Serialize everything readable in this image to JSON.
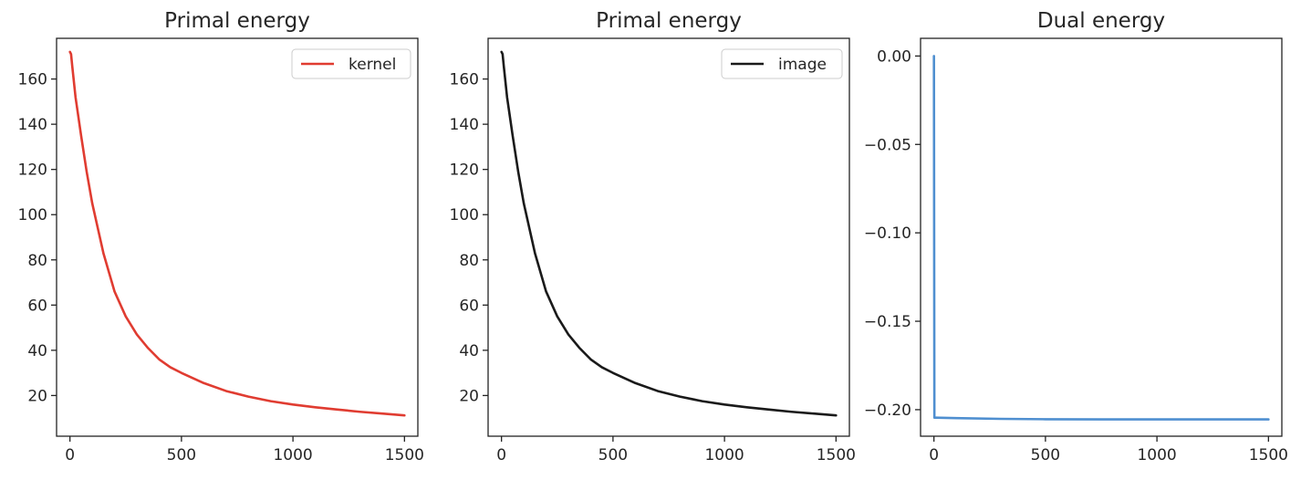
{
  "chart_data": [
    {
      "type": "line",
      "title": "Primal energy",
      "xlabel": "",
      "ylabel": "",
      "xlim": [
        -60,
        1560
      ],
      "ylim": [
        2,
        178
      ],
      "xticks": [
        0,
        500,
        1000,
        1500
      ],
      "xtick_labels": [
        "0",
        "500",
        "1000",
        "1500"
      ],
      "yticks": [
        20,
        40,
        60,
        80,
        100,
        120,
        140,
        160
      ],
      "ytick_labels": [
        "20",
        "40",
        "60",
        "80",
        "100",
        "120",
        "140",
        "160"
      ],
      "grid": false,
      "legend_position": "upper-right",
      "series": [
        {
          "name": "kernel",
          "color": "#e03c31",
          "x": [
            0,
            5,
            10,
            25,
            50,
            75,
            100,
            150,
            200,
            250,
            300,
            350,
            400,
            450,
            500,
            600,
            700,
            800,
            900,
            1000,
            1100,
            1200,
            1300,
            1400,
            1500
          ],
          "y": [
            172,
            171,
            166,
            152,
            135,
            119,
            105,
            83,
            66,
            55,
            47,
            41,
            36,
            32.5,
            30,
            25.5,
            22,
            19.5,
            17.5,
            16,
            14.8,
            13.8,
            12.8,
            12,
            11.2
          ]
        }
      ]
    },
    {
      "type": "line",
      "title": "Primal energy",
      "xlabel": "",
      "ylabel": "",
      "xlim": [
        -60,
        1560
      ],
      "ylim": [
        2,
        178
      ],
      "xticks": [
        0,
        500,
        1000,
        1500
      ],
      "xtick_labels": [
        "0",
        "500",
        "1000",
        "1500"
      ],
      "yticks": [
        20,
        40,
        60,
        80,
        100,
        120,
        140,
        160
      ],
      "ytick_labels": [
        "20",
        "40",
        "60",
        "80",
        "100",
        "120",
        "140",
        "160"
      ],
      "grid": false,
      "legend_position": "upper-right",
      "series": [
        {
          "name": "image",
          "color": "#1a1a1a",
          "x": [
            0,
            5,
            10,
            25,
            50,
            75,
            100,
            150,
            200,
            250,
            300,
            350,
            400,
            450,
            500,
            600,
            700,
            800,
            900,
            1000,
            1100,
            1200,
            1300,
            1400,
            1500
          ],
          "y": [
            172,
            171,
            166,
            152,
            135,
            119,
            105,
            83,
            66,
            55,
            47,
            41,
            36,
            32.5,
            30,
            25.5,
            22,
            19.5,
            17.5,
            16,
            14.8,
            13.8,
            12.8,
            12,
            11.2
          ]
        }
      ]
    },
    {
      "type": "line",
      "title": "Dual energy",
      "xlabel": "",
      "ylabel": "",
      "xlim": [
        -60,
        1560
      ],
      "ylim": [
        -0.215,
        0.01
      ],
      "xticks": [
        0,
        500,
        1000,
        1500
      ],
      "xtick_labels": [
        "0",
        "500",
        "1000",
        "1500"
      ],
      "yticks": [
        0.0,
        -0.05,
        -0.1,
        -0.15,
        -0.2
      ],
      "ytick_labels": [
        "0.00",
        "−0.05",
        "−0.10",
        "−0.15",
        "−0.20"
      ],
      "grid": false,
      "legend_position": "",
      "series": [
        {
          "color": "#4f8fd0",
          "x": [
            0,
            1,
            2,
            10,
            100,
            300,
            500,
            750,
            1000,
            1250,
            1500
          ],
          "y": [
            0.0,
            -0.1,
            -0.2045,
            -0.2045,
            -0.2048,
            -0.2052,
            -0.2054,
            -0.2055,
            -0.2055,
            -0.2055,
            -0.2055
          ]
        }
      ]
    }
  ]
}
